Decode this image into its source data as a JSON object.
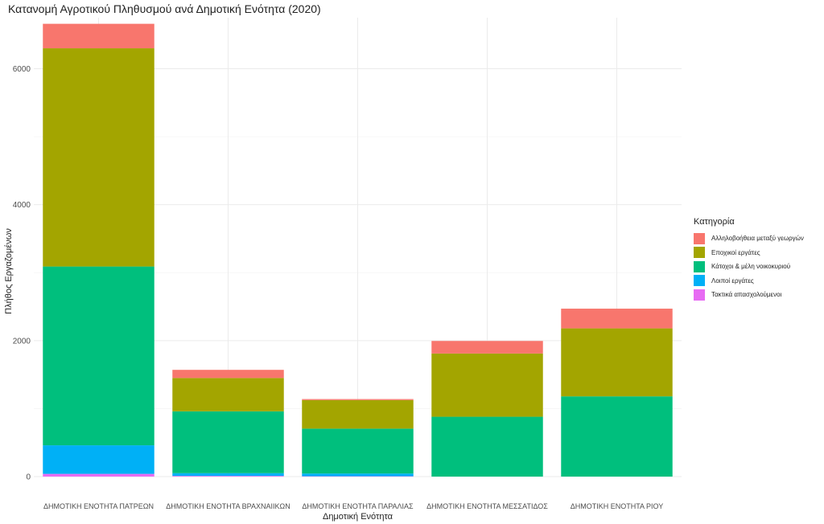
{
  "chart_data": {
    "type": "bar",
    "stacked": true,
    "title": "Κατανομή Αγροτικού Πληθυσμού ανά Δημοτική Ενότητα (2020)",
    "xlabel": "Δημοτική Ενότητα",
    "ylabel": "Πλήθος Εργαζομένων",
    "ylim": [
      0,
      6750
    ],
    "yticks": [
      0,
      2000,
      4000,
      6000
    ],
    "grid": true,
    "legend_position": "right",
    "legend_title": "Κατηγορία",
    "categories": [
      "ΔΗΜΟΤΙΚΗ ΕΝΟΤΗΤΑ ΠΑΤΡΕΩΝ",
      "ΔΗΜΟΤΙΚΗ ΕΝΟΤΗΤΑ ΒΡΑΧΝΑΙΙΚΩΝ",
      "ΔΗΜΟΤΙΚΗ ΕΝΟΤΗΤΑ ΠΑΡΑΛΙΑΣ",
      "ΔΗΜΟΤΙΚΗ ΕΝΟΤΗΤΑ ΜΕΣΣΑΤΙΔΟΣ",
      "ΔΗΜΟΤΙΚΗ ΕΝΟΤΗΤΑ ΡΙΟΥ"
    ],
    "series": [
      {
        "name": "Αλληλοβοήθεια μεταξύ γεωργών",
        "color": "#F8766D",
        "values": [
          360,
          120,
          15,
          185,
          290
        ]
      },
      {
        "name": "Εποχικοί εργάτες",
        "color": "#A3A500",
        "values": [
          3210,
          490,
          420,
          930,
          1000
        ]
      },
      {
        "name": "Κάτοχοι & μέλη νοικοκυριού",
        "color": "#00BF7D",
        "values": [
          2630,
          910,
          660,
          880,
          1180
        ]
      },
      {
        "name": "Λοιποί εργάτες",
        "color": "#00B0F6",
        "values": [
          420,
          40,
          40,
          0,
          0
        ]
      },
      {
        "name": "Τακτικά απασχολούμενοι",
        "color": "#E76BF3",
        "values": [
          40,
          10,
          5,
          0,
          0
        ]
      }
    ]
  }
}
